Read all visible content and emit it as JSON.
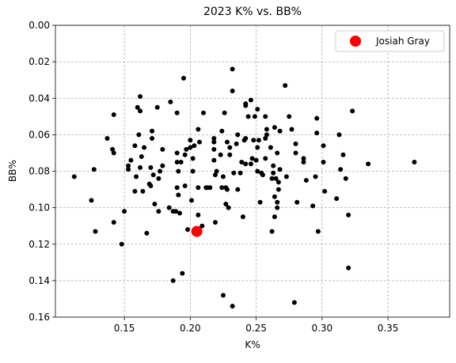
{
  "chart_data": {
    "type": "scatter",
    "title": "2023 K% vs. BB%",
    "x_label": "K%",
    "y_label": "BB%",
    "xlim": [
      0.0977,
      0.3968
    ],
    "ylim": [
      0.16,
      0
    ],
    "xticks": [
      {
        "value": 0.15,
        "label": "0.15"
      },
      {
        "value": 0.2,
        "label": "0.20"
      },
      {
        "value": 0.25,
        "label": "0.25"
      },
      {
        "value": 0.3,
        "label": "0.30"
      },
      {
        "value": 0.35,
        "label": "0.35"
      }
    ],
    "yticks": [
      {
        "value": 0,
        "label": "0.00"
      },
      {
        "value": 0.02,
        "label": "0.02"
      },
      {
        "value": 0.04,
        "label": "0.04"
      },
      {
        "value": 0.06,
        "label": "0.06"
      },
      {
        "value": 0.08,
        "label": "0.08"
      },
      {
        "value": 0.1,
        "label": "0.10"
      },
      {
        "value": 0.12,
        "label": "0.12"
      },
      {
        "value": 0.14,
        "label": "0.14"
      },
      {
        "value": 0.16,
        "label": "0.16"
      }
    ],
    "grid": true,
    "legend": "upper right",
    "series": [
      {
        "color": "#000000",
        "x": [
          0.112,
          0.125,
          0.127,
          0.128,
          0.137,
          0.141,
          0.142,
          0.142,
          0.142,
          0.148,
          0.15,
          0.153,
          0.153,
          0.155,
          0.158,
          0.158,
          0.159,
          0.16,
          0.161,
          0.162,
          0.162,
          0.162,
          0.163,
          0.164,
          0.165,
          0.167,
          0.169,
          0.17,
          0.17,
          0.171,
          0.171,
          0.172,
          0.173,
          0.175,
          0.176,
          0.176,
          0.177,
          0.179,
          0.179,
          0.184,
          0.185,
          0.187,
          0.187,
          0.189,
          0.19,
          0.19,
          0.19,
          0.19,
          0.191,
          0.191,
          0.192,
          0.193,
          0.194,
          0.195,
          0.196,
          0.196,
          0.197,
          0.198,
          0.2,
          0.2,
          0.201,
          0.202,
          0.202,
          0.203,
          0.206,
          0.206,
          0.206,
          0.207,
          0.209,
          0.21,
          0.212,
          0.213,
          0.215,
          0.218,
          0.218,
          0.218,
          0.218,
          0.219,
          0.219,
          0.22,
          0.223,
          0.224,
          0.224,
          0.225,
          0.225,
          0.226,
          0.227,
          0.227,
          0.228,
          0.228,
          0.229,
          0.23,
          0.23,
          0.232,
          0.232,
          0.232,
          0.233,
          0.235,
          0.236,
          0.236,
          0.238,
          0.239,
          0.24,
          0.241,
          0.242,
          0.242,
          0.242,
          0.242,
          0.244,
          0.246,
          0.246,
          0.247,
          0.248,
          0.249,
          0.25,
          0.251,
          0.251,
          0.251,
          0.252,
          0.253,
          0.254,
          0.255,
          0.257,
          0.257,
          0.257,
          0.258,
          0.258,
          0.261,
          0.262,
          0.262,
          0.263,
          0.264,
          0.263,
          0.264,
          0.264,
          0.265,
          0.266,
          0.266,
          0.266,
          0.267,
          0.267,
          0.268,
          0.268,
          0.272,
          0.273,
          0.275,
          0.277,
          0.279,
          0.28,
          0.28,
          0.281,
          0.286,
          0.286,
          0.288,
          0.293,
          0.295,
          0.297,
          0.296,
          0.296,
          0.301,
          0.301,
          0.302,
          0.311,
          0.313,
          0.314,
          0.316,
          0.318,
          0.32,
          0.32,
          0.323,
          0.335,
          0.37
        ],
        "values": [
          0.083,
          0.096,
          0.079,
          0.113,
          0.062,
          0.068,
          0.049,
          0.07,
          0.108,
          0.12,
          0.102,
          0.077,
          0.079,
          0.074,
          0.066,
          0.091,
          0.083,
          0.045,
          0.06,
          0.039,
          0.047,
          0.078,
          0.072,
          0.091,
          0.067,
          0.114,
          0.087,
          0.078,
          0.088,
          0.058,
          0.062,
          0.082,
          0.098,
          0.045,
          0.102,
          0.084,
          0.08,
          0.068,
          0.077,
          0.1,
          0.042,
          0.14,
          0.102,
          0.102,
          0.089,
          0.048,
          0.07,
          0.075,
          0.08,
          0.093,
          0.103,
          0.075,
          0.136,
          0.029,
          0.071,
          0.088,
          0.068,
          0.112,
          0.063,
          0.067,
          0.096,
          0.073,
          0.08,
          0.066,
          0.057,
          0.089,
          0.104,
          0.064,
          0.11,
          0.048,
          0.089,
          0.089,
          0.089,
          0.062,
          0.064,
          0.068,
          0.074,
          0.082,
          0.108,
          0.08,
          0.071,
          0.058,
          0.089,
          0.083,
          0.148,
          0.048,
          0.089,
          0.098,
          0.09,
          0.064,
          0.1,
          0.067,
          0.071,
          0.154,
          0.024,
          0.036,
          0.081,
          0.065,
          0.09,
          0.06,
          0.081,
          0.075,
          0.105,
          0.063,
          0.062,
          0.043,
          0.044,
          0.076,
          0.05,
          0.041,
          0.076,
          0.073,
          0.063,
          0.05,
          0.074,
          0.046,
          0.08,
          0.067,
          0.063,
          0.097,
          0.081,
          0.082,
          0.062,
          0.073,
          0.05,
          0.057,
          0.06,
          0.067,
          0.113,
          0.084,
          0.077,
          0.056,
          0.081,
          0.105,
          0.094,
          0.084,
          0.07,
          0.097,
          0.1,
          0.09,
          0.086,
          0.058,
          0.079,
          0.033,
          0.083,
          0.05,
          0.057,
          0.152,
          0.065,
          0.07,
          0.097,
          0.075,
          0.073,
          0.085,
          0.099,
          0.083,
          0.113,
          0.051,
          0.059,
          0.066,
          0.075,
          0.091,
          0.095,
          0.06,
          0.079,
          0.071,
          0.084,
          0.104,
          0.133,
          0.047,
          0.076,
          0.075
        ]
      },
      {
        "name": "Josiah Gray",
        "color": "#ff0000",
        "x": [
          0.205
        ],
        "values": [
          0.113
        ]
      }
    ]
  }
}
